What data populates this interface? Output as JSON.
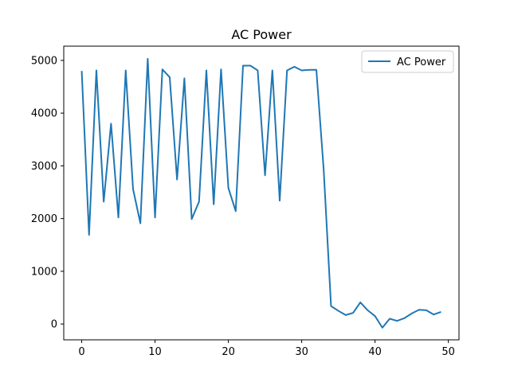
{
  "chart_data": {
    "type": "line",
    "title": "AC Power",
    "xlabel": "",
    "ylabel": "",
    "xlim": [
      -2.45,
      51.45
    ],
    "ylim": [
      -300,
      5270
    ],
    "xticks": [
      0,
      10,
      20,
      30,
      40,
      50
    ],
    "yticks": [
      0,
      1000,
      2000,
      3000,
      4000,
      5000
    ],
    "grid": false,
    "legend_position": "top-right",
    "series": [
      {
        "name": "AC Power",
        "color": "#1f77b4",
        "x": [
          0,
          1,
          2,
          3,
          4,
          5,
          6,
          7,
          8,
          9,
          10,
          11,
          12,
          13,
          14,
          15,
          16,
          17,
          18,
          19,
          20,
          21,
          22,
          23,
          24,
          25,
          26,
          27,
          28,
          29,
          30,
          31,
          32,
          33,
          34,
          35,
          36,
          37,
          38,
          39,
          40,
          41,
          42,
          43,
          44,
          45,
          46,
          47,
          48,
          49
        ],
        "y": [
          4800,
          1690,
          4810,
          2320,
          3800,
          2020,
          4810,
          2560,
          1910,
          5030,
          2020,
          4830,
          4680,
          2740,
          4660,
          1990,
          2320,
          4810,
          2270,
          4830,
          2580,
          2140,
          4900,
          4900,
          4810,
          2820,
          4810,
          2340,
          4810,
          4880,
          4810,
          4820,
          4820,
          2920,
          340,
          250,
          170,
          210,
          410,
          260,
          150,
          -70,
          100,
          60,
          110,
          200,
          270,
          260,
          180,
          230
        ]
      }
    ]
  }
}
